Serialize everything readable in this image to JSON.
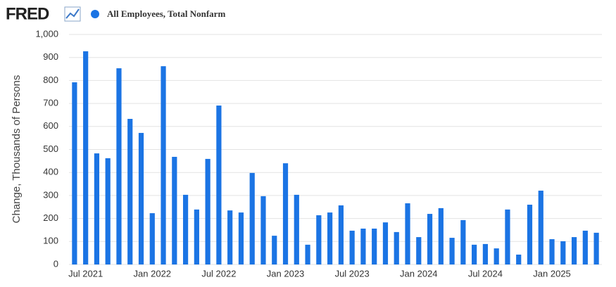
{
  "chart_data": {
    "type": "bar",
    "brand": "FRED",
    "title": "All Employees, Total Nonfarm",
    "y_label": "Change, Thousands of Persons",
    "color": "#1b74e4",
    "grid": true,
    "categories": [
      null,
      "Jul 2021",
      null,
      null,
      null,
      null,
      null,
      "Jan 2022",
      null,
      null,
      null,
      null,
      null,
      "Jul 2022",
      null,
      null,
      null,
      null,
      null,
      "Jan 2023",
      null,
      null,
      null,
      null,
      null,
      "Jul 2023",
      null,
      null,
      null,
      null,
      null,
      "Jan 2024",
      null,
      null,
      null,
      null,
      null,
      "Jul 2024",
      null,
      null,
      null,
      null,
      null,
      "Jan 2025",
      null,
      null,
      null,
      null
    ],
    "values": [
      792,
      927,
      483,
      462,
      853,
      633,
      572,
      223,
      862,
      468,
      303,
      239,
      459,
      691,
      235,
      226,
      398,
      297,
      125,
      440,
      303,
      86,
      214,
      226,
      257,
      147,
      156,
      156,
      183,
      141,
      266,
      119,
      220,
      245,
      116,
      193,
      86,
      89,
      70,
      239,
      43,
      260,
      321,
      110,
      101,
      119,
      147,
      138
    ],
    "ylim": [
      0,
      1000
    ],
    "yticks": [
      0,
      100,
      200,
      300,
      400,
      500,
      600,
      700,
      800,
      900,
      {
        "value": 1000,
        "label": "1,000"
      }
    ]
  }
}
